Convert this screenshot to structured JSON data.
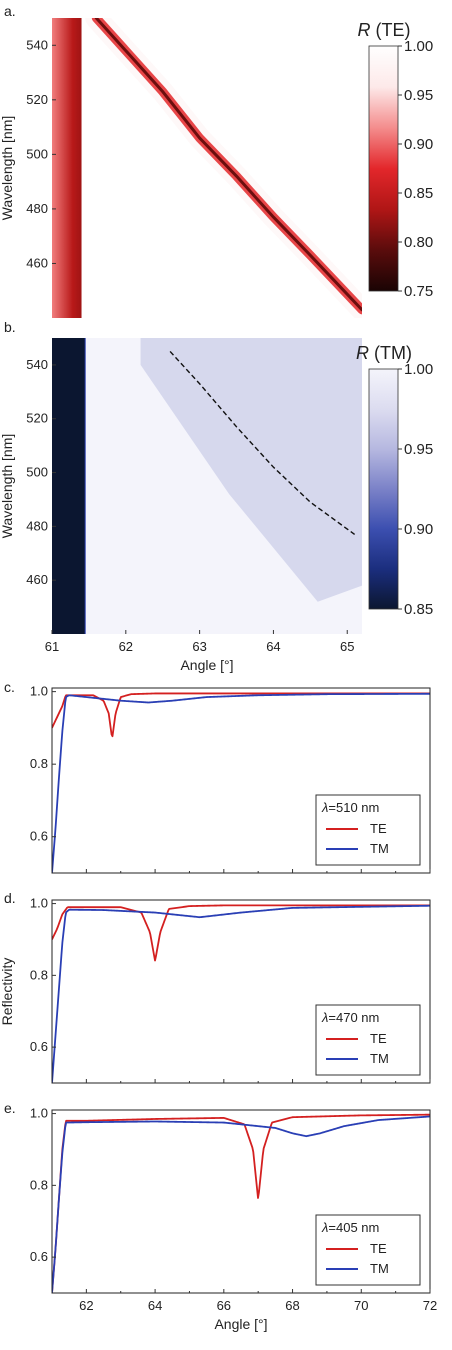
{
  "panels": {
    "a": {
      "label": "a."
    },
    "b": {
      "label": "b."
    },
    "c": {
      "label": "c."
    },
    "d": {
      "label": "d."
    },
    "e": {
      "label": "e."
    }
  },
  "colors": {
    "TE": "#d42020",
    "TM": "#2a3fb5",
    "te_map": [
      "#1a0404",
      "#5a0c0c",
      "#b01616",
      "#e3272b",
      "#f48d8d",
      "#fde9e9",
      "#ffffff"
    ],
    "tm_map": [
      "#0b1630",
      "#1b2e7e",
      "#3c4fb0",
      "#7b82c8",
      "#b6b8e0",
      "#dcdcf0",
      "#f4f4fb"
    ]
  },
  "chart_data": [
    {
      "type": "heatmap",
      "panel": "a",
      "quantity": "R (TE)",
      "colorbar": {
        "title_symbol": "R",
        "title_suffix": "(TE)",
        "min": 0.75,
        "max": 1.0,
        "ticks": [
          "1.00",
          "0.95",
          "0.90",
          "0.85",
          "0.80",
          "0.75"
        ]
      },
      "xlim": [
        61,
        65.2
      ],
      "ylim": [
        440,
        550
      ],
      "ylabel": "Wavelength [nm]",
      "yticks": [
        {
          "value": 460,
          "label": "460"
        },
        {
          "value": 480,
          "label": "480"
        },
        {
          "value": 500,
          "label": "500"
        },
        {
          "value": 520,
          "label": "520"
        },
        {
          "value": 540,
          "label": "540"
        }
      ],
      "features": [
        {
          "name": "critical-edge",
          "x": [
            61.0,
            61.4
          ],
          "min_R": 0.84
        },
        {
          "name": "resonance",
          "min_R": 0.8,
          "x": [
            61.6,
            62.0,
            62.5,
            63.0,
            63.5,
            64.0,
            64.5,
            65.2
          ],
          "y": [
            550,
            538,
            523,
            506,
            492,
            477,
            463,
            443
          ]
        }
      ]
    },
    {
      "type": "heatmap",
      "panel": "b",
      "quantity": "R (TM)",
      "colorbar": {
        "title_symbol": "R",
        "title_suffix": "(TM)",
        "min": 0.85,
        "max": 1.0,
        "ticks": [
          "1.00",
          "0.95",
          "0.90",
          "0.85"
        ]
      },
      "xlim": [
        61,
        65.2
      ],
      "ylim": [
        440,
        550
      ],
      "xlabel": "Angle [°]",
      "ylabel": "Wavelength [nm]",
      "xticks": [
        {
          "value": 61,
          "label": "61"
        },
        {
          "value": 62,
          "label": "62"
        },
        {
          "value": 63,
          "label": "63"
        },
        {
          "value": 64,
          "label": "64"
        },
        {
          "value": 65,
          "label": "65"
        }
      ],
      "yticks": [
        {
          "value": 460,
          "label": "460"
        },
        {
          "value": 480,
          "label": "480"
        },
        {
          "value": 500,
          "label": "500"
        },
        {
          "value": 520,
          "label": "520"
        },
        {
          "value": 540,
          "label": "540"
        }
      ],
      "features": [
        {
          "name": "critical-region",
          "x": [
            61.0,
            61.45
          ],
          "R": 0.85
        },
        {
          "name": "dashed-guide",
          "x": [
            62.6,
            63.0,
            63.5,
            64.0,
            64.5,
            65.1
          ],
          "y": [
            545,
            533,
            517,
            502,
            489,
            477
          ]
        }
      ]
    },
    {
      "type": "line",
      "panel": "c",
      "xlim": [
        61,
        72
      ],
      "ylim": [
        0.5,
        1.01
      ],
      "yticks": [
        {
          "value": 0.6,
          "label": "0.6"
        },
        {
          "value": 0.8,
          "label": "0.8"
        },
        {
          "value": 1.0,
          "label": "1.0"
        }
      ],
      "legend": {
        "position": "bottom-right",
        "wavelength_symbol": "λ",
        "wavelength_text": "=510 nm"
      },
      "series": [
        {
          "name": "TE",
          "x": [
            61.0,
            61.15,
            61.3,
            61.4,
            61.6,
            62.2,
            62.5,
            62.65,
            62.75,
            62.85,
            63.0,
            63.3,
            64.0,
            66.0,
            72.0
          ],
          "y": [
            0.9,
            0.93,
            0.96,
            0.99,
            0.99,
            0.99,
            0.975,
            0.94,
            0.87,
            0.94,
            0.985,
            0.993,
            0.995,
            0.995,
            0.995
          ]
        },
        {
          "name": "TM",
          "x": [
            61.0,
            61.1,
            61.2,
            61.3,
            61.4,
            61.5,
            62.0,
            63.0,
            63.8,
            64.5,
            65.5,
            67.0,
            69.0,
            72.0
          ],
          "y": [
            0.5,
            0.62,
            0.76,
            0.89,
            0.985,
            0.99,
            0.985,
            0.975,
            0.97,
            0.975,
            0.985,
            0.99,
            0.993,
            0.994
          ]
        }
      ]
    },
    {
      "type": "line",
      "panel": "d",
      "xlim": [
        61,
        72
      ],
      "ylim": [
        0.5,
        1.01
      ],
      "ylabel": "Reflectivity",
      "yticks": [
        {
          "value": 0.6,
          "label": "0.6"
        },
        {
          "value": 0.8,
          "label": "0.8"
        },
        {
          "value": 1.0,
          "label": "1.0"
        }
      ],
      "legend": {
        "position": "bottom-right",
        "wavelength_symbol": "λ",
        "wavelength_text": "=470 nm"
      },
      "series": [
        {
          "name": "TE",
          "x": [
            61.0,
            61.15,
            61.3,
            61.45,
            61.7,
            63.0,
            63.6,
            63.85,
            64.0,
            64.15,
            64.4,
            65.0,
            66.0,
            72.0
          ],
          "y": [
            0.9,
            0.93,
            0.97,
            0.99,
            0.99,
            0.99,
            0.975,
            0.92,
            0.84,
            0.92,
            0.985,
            0.993,
            0.995,
            0.995
          ]
        },
        {
          "name": "TM",
          "x": [
            61.0,
            61.1,
            61.2,
            61.3,
            61.4,
            61.5,
            62.5,
            64.0,
            65.3,
            66.5,
            68.0,
            72.0
          ],
          "y": [
            0.5,
            0.63,
            0.76,
            0.89,
            0.975,
            0.983,
            0.982,
            0.975,
            0.962,
            0.975,
            0.988,
            0.994
          ]
        }
      ]
    },
    {
      "type": "line",
      "panel": "e",
      "xlim": [
        61,
        72
      ],
      "ylim": [
        0.5,
        1.01
      ],
      "xlabel": "Angle [°]",
      "yticks": [
        {
          "value": 0.6,
          "label": "0.6"
        },
        {
          "value": 0.8,
          "label": "0.8"
        },
        {
          "value": 1.0,
          "label": "1.0"
        }
      ],
      "xticks": [
        {
          "value": 62,
          "label": "62"
        },
        {
          "value": 64,
          "label": "64"
        },
        {
          "value": 66,
          "label": "66"
        },
        {
          "value": 68,
          "label": "68"
        },
        {
          "value": 70,
          "label": "70"
        },
        {
          "value": 72,
          "label": "72"
        }
      ],
      "legend": {
        "position": "bottom-right",
        "wavelength_symbol": "λ",
        "wavelength_text": "=405 nm"
      },
      "series": [
        {
          "name": "TE",
          "x": [
            61.0,
            61.1,
            61.2,
            61.3,
            61.4,
            62.0,
            64.0,
            66.0,
            66.6,
            66.85,
            67.0,
            67.15,
            67.4,
            68.0,
            70.0,
            72.0
          ],
          "y": [
            0.5,
            0.62,
            0.76,
            0.9,
            0.98,
            0.98,
            0.985,
            0.988,
            0.97,
            0.9,
            0.76,
            0.9,
            0.975,
            0.99,
            0.995,
            0.997
          ]
        },
        {
          "name": "TM",
          "x": [
            61.0,
            61.1,
            61.2,
            61.3,
            61.4,
            62.0,
            64.0,
            66.0,
            67.5,
            68.0,
            68.4,
            68.8,
            69.5,
            70.5,
            72.0
          ],
          "y": [
            0.5,
            0.62,
            0.76,
            0.89,
            0.975,
            0.976,
            0.978,
            0.975,
            0.96,
            0.945,
            0.937,
            0.945,
            0.965,
            0.982,
            0.992
          ]
        }
      ]
    }
  ]
}
